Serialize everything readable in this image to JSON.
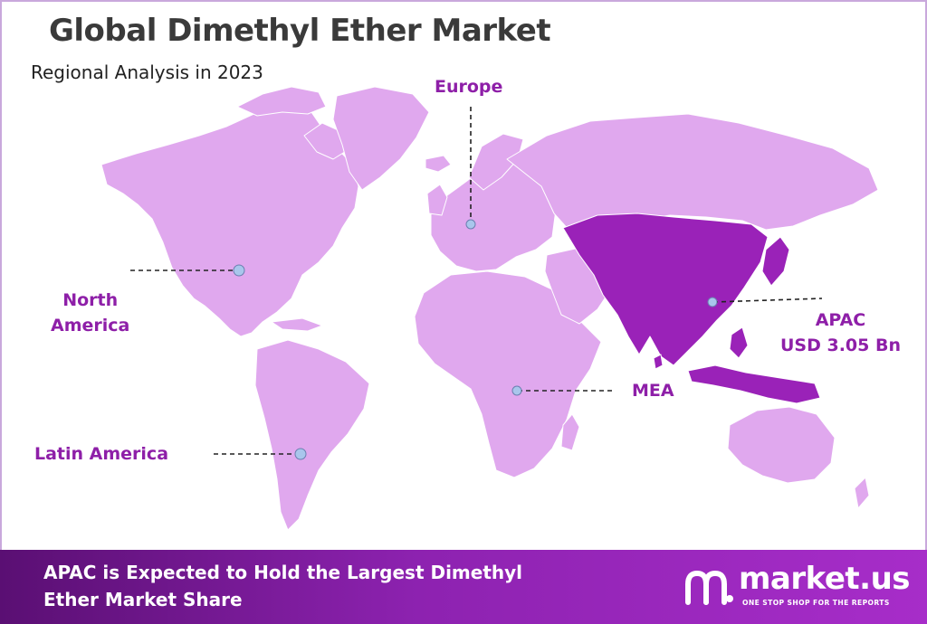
{
  "header": {
    "title": "Global Dimethyl Ether Market",
    "subtitle": "Regional Analysis in 2023"
  },
  "colors": {
    "land": "#e0a8ee",
    "highlight": "#9a22b8",
    "label": "#8e1fa8",
    "marker": "#a9c6ec",
    "footer_start": "#5a0f73",
    "footer_end": "#a72dc9"
  },
  "regions": {
    "europe": {
      "label": "Europe"
    },
    "north_america": {
      "line1": "North",
      "line2": "America"
    },
    "latin_america": {
      "label": "Latin America"
    },
    "mea": {
      "label": "MEA"
    },
    "apac": {
      "label": "APAC",
      "value": "USD 3.05 Bn",
      "highlighted": true
    }
  },
  "footer": {
    "line1": "APAC is Expected to Hold the Largest Dimethyl",
    "line2": "Ether Market Share"
  },
  "logo": {
    "name": "market.us",
    "tagline": "ONE STOP SHOP FOR THE REPORTS",
    "icon": "market-us-logo-icon"
  }
}
